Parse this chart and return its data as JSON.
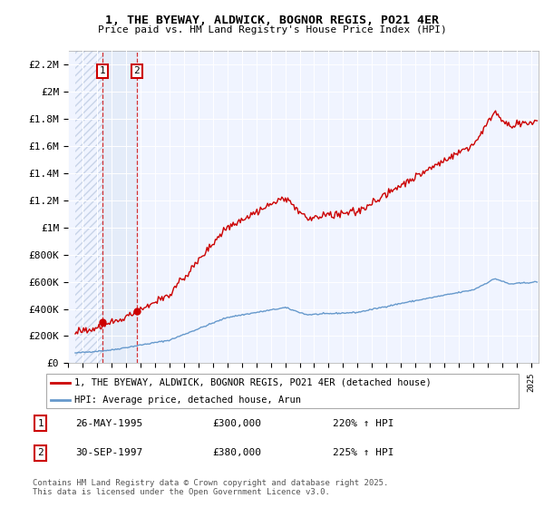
{
  "title_line1": "1, THE BYEWAY, ALDWICK, BOGNOR REGIS, PO21 4ER",
  "title_line2": "Price paid vs. HM Land Registry's House Price Index (HPI)",
  "ylabel_ticks": [
    "£0",
    "£200K",
    "£400K",
    "£600K",
    "£800K",
    "£1M",
    "£1.2M",
    "£1.4M",
    "£1.6M",
    "£1.8M",
    "£2M",
    "£2.2M"
  ],
  "ytick_values": [
    0,
    200000,
    400000,
    600000,
    800000,
    1000000,
    1200000,
    1400000,
    1600000,
    1800000,
    2000000,
    2200000
  ],
  "ylim": [
    0,
    2300000
  ],
  "xlim_start": 1993.5,
  "xlim_end": 2025.5,
  "hpi_color": "#6699cc",
  "price_color": "#cc0000",
  "sale1_year": 1995.4,
  "sale1_price": 300000,
  "sale2_year": 1997.75,
  "sale2_price": 380000,
  "legend_entry1": "1, THE BYEWAY, ALDWICK, BOGNOR REGIS, PO21 4ER (detached house)",
  "legend_entry2": "HPI: Average price, detached house, Arun",
  "table_row1_num": "1",
  "table_row1_date": "26-MAY-1995",
  "table_row1_price": "£300,000",
  "table_row1_hpi": "220% ↑ HPI",
  "table_row2_num": "2",
  "table_row2_date": "30-SEP-1997",
  "table_row2_price": "£380,000",
  "table_row2_hpi": "225% ↑ HPI",
  "footnote": "Contains HM Land Registry data © Crown copyright and database right 2025.\nThis data is licensed under the Open Government Licence v3.0.",
  "bg_color": "#ffffff",
  "plot_bg_color": "#f0f4ff",
  "hatch_color": "#c8d4e8",
  "shade_color": "#dce8f5"
}
